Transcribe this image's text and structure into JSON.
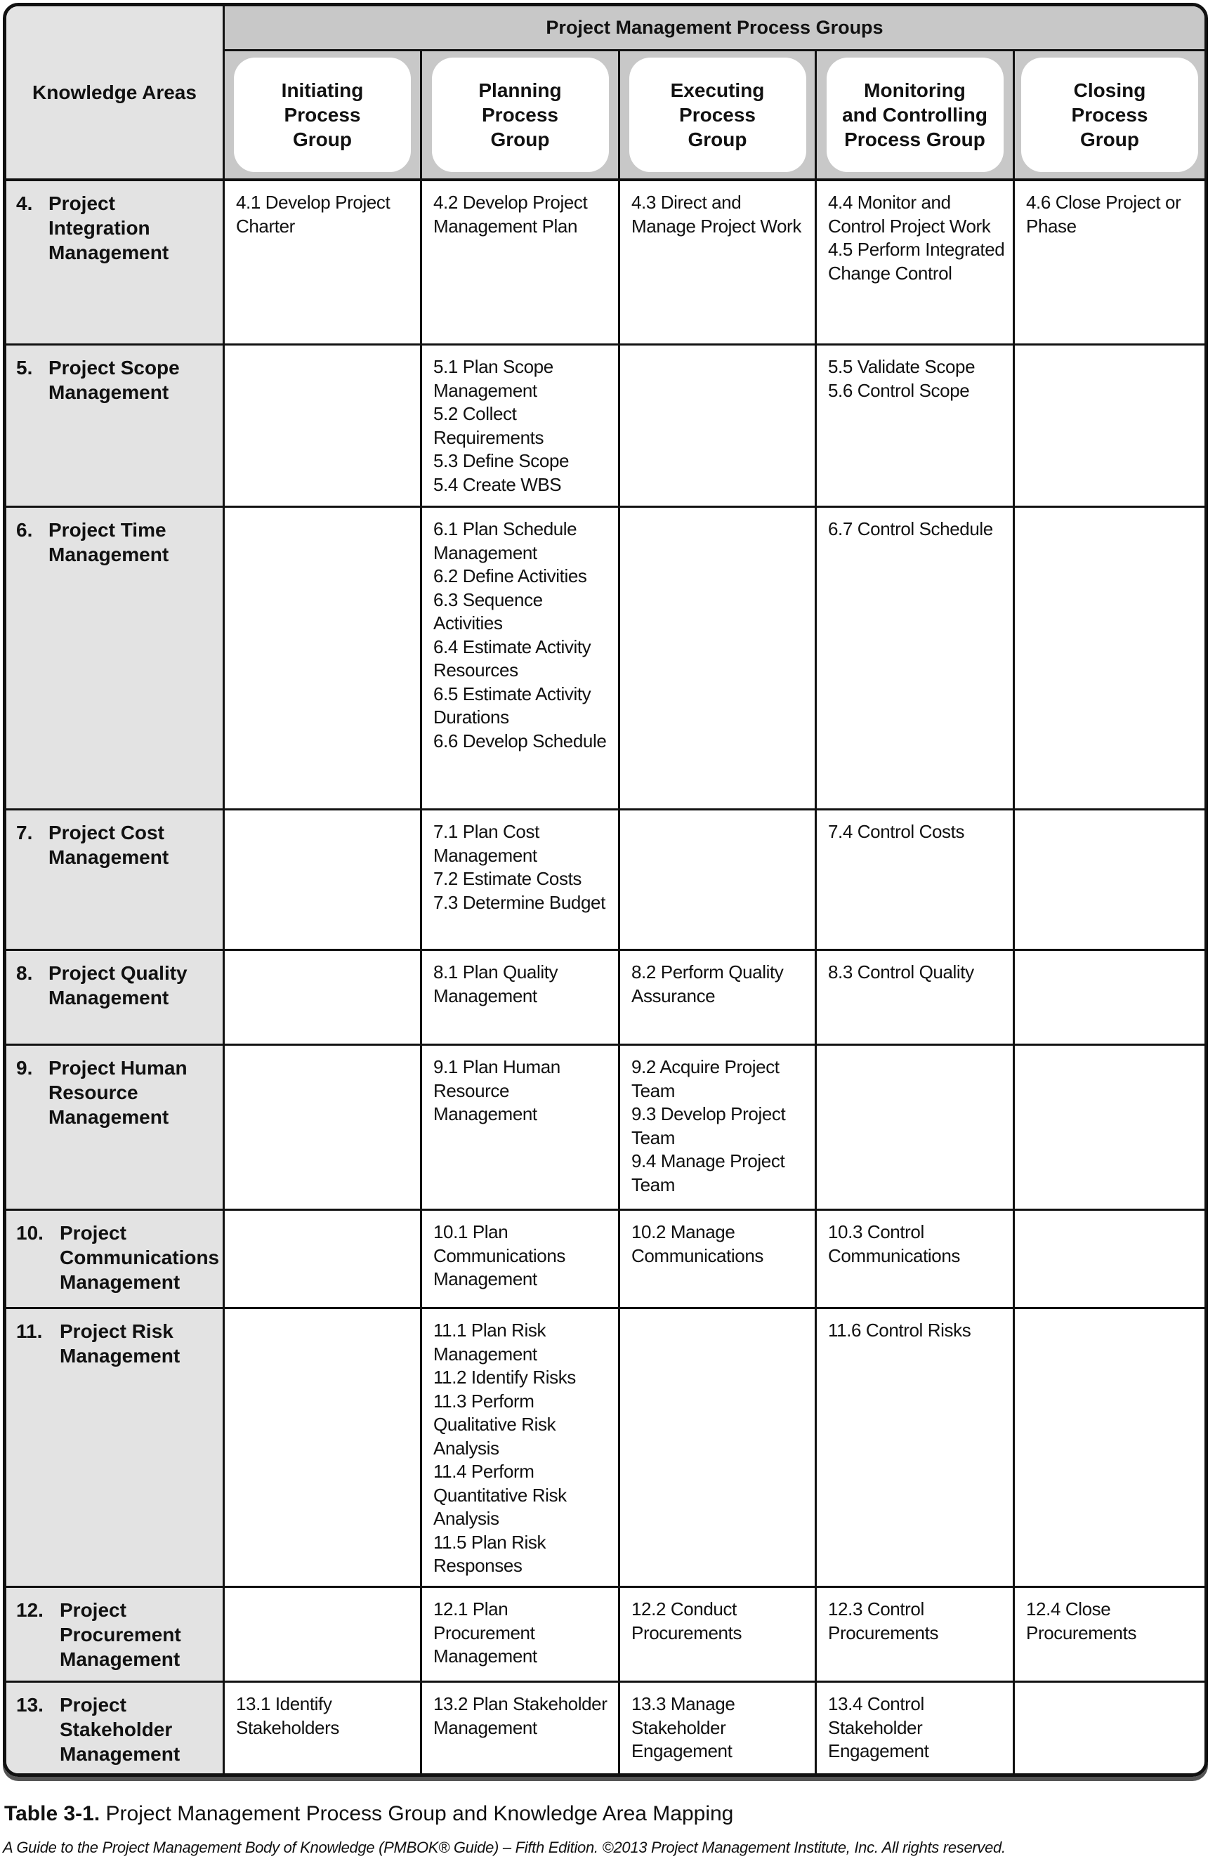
{
  "header": {
    "knowledge_areas": "Knowledge Areas",
    "process_groups_title": "Project Management Process Groups",
    "groups": [
      "Initiating\nProcess\nGroup",
      "Planning\nProcess\nGroup",
      "Executing\nProcess\nGroup",
      "Monitoring\nand Controlling\nProcess Group",
      "Closing\nProcess\nGroup"
    ]
  },
  "rows": [
    {
      "num": "4.",
      "name": "Project Integration Management",
      "cells": [
        [
          "4.1 Develop Project Charter"
        ],
        [
          "4.2 Develop Project Management Plan"
        ],
        [
          "4.3 Direct and Manage Project Work"
        ],
        [
          "4.4 Monitor and Control Project Work",
          "4.5 Perform Integrated Change Control"
        ],
        [
          "4.6 Close Project or Phase"
        ]
      ]
    },
    {
      "num": "5.",
      "name": "Project Scope Management",
      "cells": [
        [],
        [
          "5.1 Plan Scope Management",
          "5.2 Collect Requirements",
          "5.3 Define Scope",
          "5.4 Create WBS"
        ],
        [],
        [
          "5.5 Validate Scope",
          "5.6 Control Scope"
        ],
        []
      ]
    },
    {
      "num": "6.",
      "name": "Project Time Management",
      "cells": [
        [],
        [
          "6.1 Plan Schedule Management",
          "6.2 Define Activities",
          "6.3 Sequence Activities",
          "6.4 Estimate Activity Resources",
          "6.5 Estimate Activity Durations",
          "6.6 Develop Schedule"
        ],
        [],
        [
          "6.7 Control Schedule"
        ],
        []
      ]
    },
    {
      "num": "7.",
      "name": "Project Cost Management",
      "cells": [
        [],
        [
          "7.1 Plan Cost Management",
          "7.2 Estimate Costs",
          "7.3 Determine Budget"
        ],
        [],
        [
          "7.4 Control Costs"
        ],
        []
      ]
    },
    {
      "num": "8.",
      "name": "Project Quality Management",
      "cells": [
        [],
        [
          "8.1 Plan Quality Management"
        ],
        [
          "8.2 Perform Quality Assurance"
        ],
        [
          "8.3 Control Quality"
        ],
        []
      ]
    },
    {
      "num": "9.",
      "name": "Project Human Resource Management",
      "cells": [
        [],
        [
          "9.1 Plan Human Resource Management"
        ],
        [
          "9.2 Acquire Project Team",
          "9.3 Develop Project Team",
          "9.4 Manage Project Team"
        ],
        [],
        []
      ]
    },
    {
      "num": "10.",
      "name": "Project Communications Management",
      "cells": [
        [],
        [
          "10.1 Plan Communications Management"
        ],
        [
          "10.2 Manage Communications"
        ],
        [
          "10.3 Control Communications"
        ],
        []
      ]
    },
    {
      "num": "11.",
      "name": "Project Risk Management",
      "cells": [
        [],
        [
          "11.1 Plan Risk Management",
          "11.2 Identify Risks",
          "11.3 Perform Qualitative Risk Analysis",
          "11.4 Perform Quantitative Risk Analysis",
          "11.5 Plan Risk Responses"
        ],
        [],
        [
          "11.6 Control Risks"
        ],
        []
      ]
    },
    {
      "num": "12.",
      "name": "Project Procurement Management",
      "cells": [
        [],
        [
          "12.1 Plan Procurement Management"
        ],
        [
          "12.2 Conduct Procurements"
        ],
        [
          "12.3 Control Procurements"
        ],
        [
          "12.4 Close Procurements"
        ]
      ]
    },
    {
      "num": "13.",
      "name": "Project Stakeholder Management",
      "cells": [
        [
          "13.1 Identify Stakeholders"
        ],
        [
          "13.2 Plan Stakeholder Management"
        ],
        [
          "13.3 Manage Stakeholder Engagement"
        ],
        [
          "13.4 Control Stakeholder Engagement"
        ],
        []
      ]
    }
  ],
  "caption": {
    "label": "Table 3-1.",
    "text": " Project Management Process Group and Knowledge Area Mapping"
  },
  "credit": {
    "text": "A Guide to the Project Management Body of Knowledge (PMBOK® Guide) – Fifth Edition. ©2013 Project Management Institute, Inc. All rights reserved."
  }
}
